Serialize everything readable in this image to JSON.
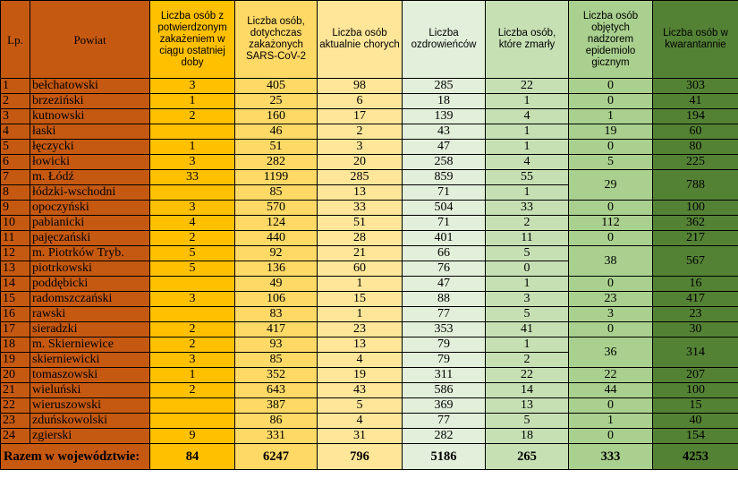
{
  "colors": {
    "lp_powiat": "#c65911",
    "confirmed_24h": "#ffc000",
    "infected_total": "#ffd966",
    "currently_ill": "#ffe699",
    "recovered": "#e2efda",
    "died": "#c6e0b4",
    "epi_supervision": "#a9d08e",
    "quarantine": "#548235"
  },
  "headers": {
    "lp": "Lp.",
    "powiat": "Powiat",
    "confirmed_24h": "Liczba osób z potwierdzonym zakażeniem w ciągu ostatniej doby",
    "infected_total": "Liczba osób, dotychczas zakażonych SARS-CoV-2",
    "currently_ill": "Liczba osób aktualnie chorych",
    "recovered": "Liczba ozdrowieńców",
    "died": "Liczba osób, które zmarły",
    "epi_supervision": "Liczba osób objętych nadzorem epidemiolo gicznym",
    "quarantine": "Liczba osób w kwarantannie"
  },
  "rows": [
    {
      "lp": "1",
      "powiat": "bełchatowski",
      "confirmed_24h": "3",
      "infected_total": "405",
      "currently_ill": "98",
      "recovered": "285",
      "died": "22",
      "epi_supervision": "0",
      "quarantine": "303"
    },
    {
      "lp": "2",
      "powiat": "brzeziński",
      "confirmed_24h": "1",
      "infected_total": "25",
      "currently_ill": "6",
      "recovered": "18",
      "died": "1",
      "epi_supervision": "0",
      "quarantine": "41"
    },
    {
      "lp": "3",
      "powiat": "kutnowski",
      "confirmed_24h": "2",
      "infected_total": "160",
      "currently_ill": "17",
      "recovered": "139",
      "died": "4",
      "epi_supervision": "1",
      "quarantine": "194"
    },
    {
      "lp": "4",
      "powiat": "łaski",
      "confirmed_24h": "",
      "infected_total": "46",
      "currently_ill": "2",
      "recovered": "43",
      "died": "1",
      "epi_supervision": "19",
      "quarantine": "60"
    },
    {
      "lp": "5",
      "powiat": "łęczycki",
      "confirmed_24h": "1",
      "infected_total": "51",
      "currently_ill": "3",
      "recovered": "47",
      "died": "1",
      "epi_supervision": "0",
      "quarantine": "80"
    },
    {
      "lp": "6",
      "powiat": "łowicki",
      "confirmed_24h": "3",
      "infected_total": "282",
      "currently_ill": "20",
      "recovered": "258",
      "died": "4",
      "epi_supervision": "5",
      "quarantine": "225"
    },
    {
      "lp": "7",
      "powiat": "m. Łódź",
      "confirmed_24h": "33",
      "infected_total": "1199",
      "currently_ill": "285",
      "recovered": "859",
      "died": "55",
      "epi_supervision": "29",
      "quarantine": "788"
    },
    {
      "lp": "8",
      "powiat": "łódzki-wschodni",
      "confirmed_24h": "",
      "infected_total": "85",
      "currently_ill": "13",
      "recovered": "71",
      "died": "1",
      "epi_supervision": "",
      "quarantine": ""
    },
    {
      "lp": "9",
      "powiat": "opoczyński",
      "confirmed_24h": "3",
      "infected_total": "570",
      "currently_ill": "33",
      "recovered": "504",
      "died": "33",
      "epi_supervision": "0",
      "quarantine": "100"
    },
    {
      "lp": "10",
      "powiat": "pabianicki",
      "confirmed_24h": "4",
      "infected_total": "124",
      "currently_ill": "51",
      "recovered": "71",
      "died": "2",
      "epi_supervision": "112",
      "quarantine": "362"
    },
    {
      "lp": "11",
      "powiat": "pajęczański",
      "confirmed_24h": "2",
      "infected_total": "440",
      "currently_ill": "28",
      "recovered": "401",
      "died": "11",
      "epi_supervision": "0",
      "quarantine": "217"
    },
    {
      "lp": "12",
      "powiat": "m. Piotrków Tryb.",
      "confirmed_24h": "5",
      "infected_total": "92",
      "currently_ill": "21",
      "recovered": "66",
      "died": "5",
      "epi_supervision": "38",
      "quarantine": "567"
    },
    {
      "lp": "13",
      "powiat": "piotrkowski",
      "confirmed_24h": "5",
      "infected_total": "136",
      "currently_ill": "60",
      "recovered": "76",
      "died": "0",
      "epi_supervision": "",
      "quarantine": ""
    },
    {
      "lp": "14",
      "powiat": "poddębicki",
      "confirmed_24h": "",
      "infected_total": "49",
      "currently_ill": "1",
      "recovered": "47",
      "died": "1",
      "epi_supervision": "0",
      "quarantine": "16"
    },
    {
      "lp": "15",
      "powiat": "radomszczański",
      "confirmed_24h": "3",
      "infected_total": "106",
      "currently_ill": "15",
      "recovered": "88",
      "died": "3",
      "epi_supervision": "23",
      "quarantine": "417"
    },
    {
      "lp": "16",
      "powiat": "rawski",
      "confirmed_24h": "",
      "infected_total": "83",
      "currently_ill": "1",
      "recovered": "77",
      "died": "5",
      "epi_supervision": "3",
      "quarantine": "23"
    },
    {
      "lp": "17",
      "powiat": "sieradzki",
      "confirmed_24h": "2",
      "infected_total": "417",
      "currently_ill": "23",
      "recovered": "353",
      "died": "41",
      "epi_supervision": "0",
      "quarantine": "30"
    },
    {
      "lp": "18",
      "powiat": "m. Skierniewice",
      "confirmed_24h": "2",
      "infected_total": "93",
      "currently_ill": "13",
      "recovered": "79",
      "died": "1",
      "epi_supervision": "36",
      "quarantine": "314"
    },
    {
      "lp": "19",
      "powiat": "skierniewicki",
      "confirmed_24h": "3",
      "infected_total": "85",
      "currently_ill": "4",
      "recovered": "79",
      "died": "2",
      "epi_supervision": "",
      "quarantine": ""
    },
    {
      "lp": "20",
      "powiat": "tomaszowski",
      "confirmed_24h": "1",
      "infected_total": "352",
      "currently_ill": "19",
      "recovered": "311",
      "died": "22",
      "epi_supervision": "22",
      "quarantine": "207"
    },
    {
      "lp": "21",
      "powiat": "wieluński",
      "confirmed_24h": "2",
      "infected_total": "643",
      "currently_ill": "43",
      "recovered": "586",
      "died": "14",
      "epi_supervision": "44",
      "quarantine": "100"
    },
    {
      "lp": "22",
      "powiat": "wieruszowski",
      "confirmed_24h": "",
      "infected_total": "387",
      "currently_ill": "5",
      "recovered": "369",
      "died": "13",
      "epi_supervision": "0",
      "quarantine": "15"
    },
    {
      "lp": "23",
      "powiat": "zduńskowolski",
      "confirmed_24h": "",
      "infected_total": "86",
      "currently_ill": "4",
      "recovered": "77",
      "died": "5",
      "epi_supervision": "1",
      "quarantine": "40"
    },
    {
      "lp": "24",
      "powiat": "zgierski",
      "confirmed_24h": "9",
      "infected_total": "331",
      "currently_ill": "31",
      "recovered": "282",
      "died": "18",
      "epi_supervision": "0",
      "quarantine": "154"
    }
  ],
  "merged": [
    {
      "start": 7,
      "span": 2
    },
    {
      "start": 12,
      "span": 2
    },
    {
      "start": 18,
      "span": 2
    }
  ],
  "total": {
    "label": "Razem w województwie:",
    "confirmed_24h": "84",
    "infected_total": "6247",
    "currently_ill": "796",
    "recovered": "5186",
    "died": "265",
    "epi_supervision": "333",
    "quarantine": "4253"
  }
}
